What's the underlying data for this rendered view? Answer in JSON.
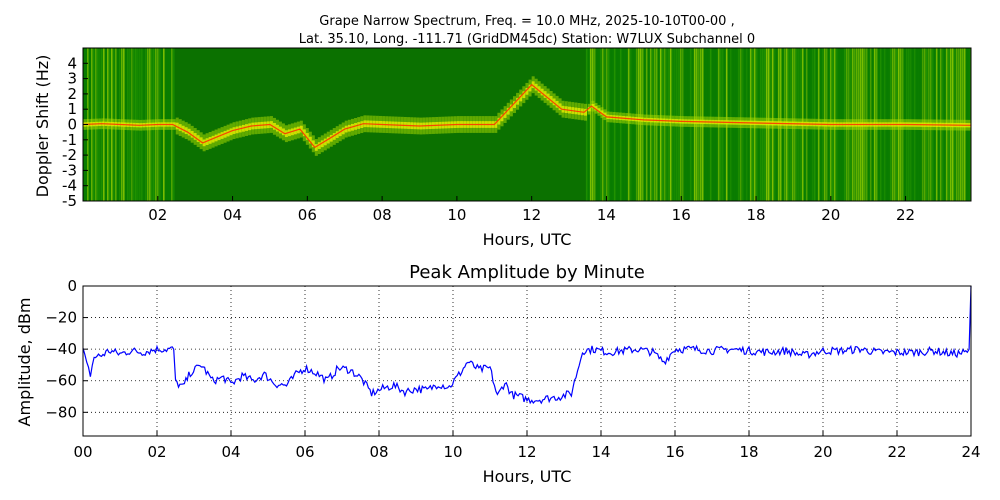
{
  "chart_data": [
    {
      "type": "heatmap",
      "title_line1": "Grape Narrow Spectrum, Freq. = 10.0 MHz, 2025-10-10T00-00 ,",
      "title_line2": "Lat.  35.10, Long. -111.71 (GridDM45dc) Station: W7LUX Subchannel 0",
      "xlabel": "Hours, UTC",
      "ylabel": "Doppler Shift (Hz)",
      "xlim": [
        0,
        23.75
      ],
      "ylim": [
        -5,
        5
      ],
      "x_ticks": [
        2,
        4,
        6,
        8,
        10,
        12,
        14,
        16,
        18,
        20,
        22
      ],
      "x_tick_labels": [
        "02",
        "04",
        "06",
        "08",
        "10",
        "12",
        "14",
        "16",
        "18",
        "20",
        "22"
      ],
      "y_ticks": [
        4,
        3,
        2,
        1,
        0,
        -1,
        -2,
        -3,
        -4,
        -5
      ],
      "y_tick_labels": [
        "4",
        "3",
        "2",
        "1",
        "0",
        "-1",
        "-2",
        "-3",
        "-4",
        "-5"
      ],
      "colors": {
        "background": "#0a7d00",
        "low": "#2a9a00",
        "mid": "#a8d800",
        "high": "#f0f000",
        "peak": "#ff2a00",
        "gap": "#0d5c00"
      },
      "doppler_trace": [
        [
          0.0,
          0.0
        ],
        [
          0.5,
          0.05
        ],
        [
          1.0,
          0.0
        ],
        [
          1.5,
          -0.05
        ],
        [
          2.0,
          0.0
        ],
        [
          2.4,
          0.0
        ],
        [
          2.8,
          -0.5
        ],
        [
          3.2,
          -1.2
        ],
        [
          3.6,
          -0.8
        ],
        [
          4.0,
          -0.4
        ],
        [
          4.5,
          -0.1
        ],
        [
          5.0,
          0.0
        ],
        [
          5.4,
          -0.6
        ],
        [
          5.8,
          -0.3
        ],
        [
          6.2,
          -1.5
        ],
        [
          6.6,
          -0.9
        ],
        [
          7.0,
          -0.3
        ],
        [
          7.5,
          0.05
        ],
        [
          8.0,
          0.0
        ],
        [
          9.0,
          -0.1
        ],
        [
          10.0,
          0.0
        ],
        [
          11.0,
          0.0
        ],
        [
          12.0,
          2.6
        ],
        [
          12.8,
          1.0
        ],
        [
          13.4,
          0.8
        ],
        [
          13.6,
          1.2
        ],
        [
          14.0,
          0.5
        ],
        [
          15.0,
          0.3
        ],
        [
          16.0,
          0.2
        ],
        [
          18.0,
          0.1
        ],
        [
          20.0,
          0.0
        ],
        [
          22.0,
          0.0
        ],
        [
          23.75,
          -0.05
        ]
      ],
      "broadband_segments": [
        [
          0.0,
          2.45
        ],
        [
          13.45,
          23.75
        ]
      ],
      "gap_segments": [
        [
          2.45,
          13.45
        ]
      ]
    },
    {
      "type": "line",
      "title": "Peak Amplitude by Minute",
      "xlabel": "Hours, UTC",
      "ylabel": "Amplitude, dBm",
      "xlim": [
        0,
        24
      ],
      "ylim": [
        -95,
        0
      ],
      "grid": true,
      "x_ticks": [
        0,
        2,
        4,
        6,
        8,
        10,
        12,
        14,
        16,
        18,
        20,
        22,
        24
      ],
      "x_tick_labels": [
        "00",
        "02",
        "04",
        "06",
        "08",
        "10",
        "12",
        "14",
        "16",
        "18",
        "20",
        "22",
        "24"
      ],
      "y_ticks": [
        0,
        -20,
        -40,
        -60,
        -80
      ],
      "y_tick_labels": [
        "0",
        "−20",
        "−40",
        "−60",
        "−80"
      ],
      "line_color": "#0000ff",
      "x": [
        0.0,
        0.1,
        0.2,
        0.3,
        0.5,
        0.7,
        1.0,
        1.3,
        1.6,
        2.0,
        2.3,
        2.45,
        2.5,
        2.7,
        2.9,
        3.2,
        3.5,
        3.8,
        4.0,
        4.3,
        4.6,
        4.9,
        5.2,
        5.5,
        5.8,
        6.0,
        6.3,
        6.6,
        6.9,
        7.2,
        7.5,
        7.8,
        8.1,
        8.4,
        8.7,
        9.0,
        9.3,
        9.6,
        9.9,
        10.2,
        10.4,
        10.7,
        11.0,
        11.2,
        11.4,
        11.6,
        11.8,
        12.0,
        12.3,
        12.6,
        12.9,
        13.2,
        13.45,
        13.5,
        13.8,
        14.2,
        14.6,
        15.0,
        15.4,
        15.7,
        16.0,
        16.5,
        17.0,
        17.5,
        18.0,
        18.5,
        19.0,
        19.5,
        20.0,
        20.5,
        21.0,
        21.5,
        22.0,
        22.5,
        23.0,
        23.5,
        23.9,
        23.95,
        24.0
      ],
      "y": [
        -40,
        -50,
        -56,
        -45,
        -44,
        -41,
        -43,
        -41,
        -42,
        -40,
        -40,
        -40,
        -61,
        -64,
        -55,
        -50,
        -60,
        -58,
        -62,
        -57,
        -60,
        -56,
        -62,
        -63,
        -55,
        -52,
        -55,
        -60,
        -52,
        -53,
        -58,
        -68,
        -65,
        -63,
        -67,
        -65,
        -66,
        -62,
        -64,
        -55,
        -48,
        -53,
        -52,
        -70,
        -61,
        -69,
        -70,
        -72,
        -72,
        -71,
        -70,
        -68,
        -46,
        -41,
        -40,
        -42,
        -41,
        -40,
        -42,
        -48,
        -40,
        -40,
        -41,
        -40,
        -41,
        -42,
        -41,
        -44,
        -41,
        -41,
        -40,
        -42,
        -42,
        -42,
        -41,
        -43,
        -42,
        -40,
        0
      ]
    }
  ]
}
